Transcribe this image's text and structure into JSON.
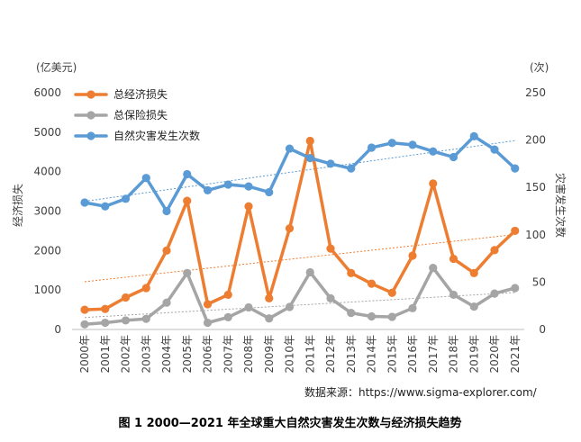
{
  "chart_data": {
    "type": "line",
    "categories": [
      "2000年",
      "2001年",
      "2002年",
      "2003年",
      "2004年",
      "2005年",
      "2006年",
      "2007年",
      "2008年",
      "2009年",
      "2010年",
      "2011年",
      "2012年",
      "2013年",
      "2014年",
      "2015年",
      "2016年",
      "2017年",
      "2018年",
      "2019年",
      "2020年",
      "2021年"
    ],
    "series": [
      {
        "name": "总经济损失",
        "axis": "left",
        "color": "#ED7D31",
        "values": [
          500,
          520,
          810,
          1050,
          2000,
          3260,
          640,
          880,
          3120,
          790,
          2560,
          4780,
          2050,
          1430,
          1160,
          930,
          1870,
          3700,
          1790,
          1430,
          2010,
          2500
        ]
      },
      {
        "name": "总保险损失",
        "axis": "left",
        "color": "#A5A5A5",
        "values": [
          130,
          170,
          230,
          270,
          680,
          1430,
          170,
          310,
          560,
          280,
          570,
          1450,
          790,
          420,
          330,
          320,
          540,
          1560,
          880,
          580,
          910,
          1050
        ]
      },
      {
        "name": "自然灾害发生次数",
        "axis": "right",
        "color": "#5B9BD5",
        "values": [
          134,
          130,
          138,
          160,
          125,
          164,
          147,
          153,
          151,
          145,
          191,
          181,
          175,
          170,
          192,
          197,
          195,
          188,
          182,
          204,
          190,
          170
        ]
      }
    ],
    "y_left": {
      "label": "经济损失",
      "unit": "(亿美元)",
      "ylim": [
        0,
        6000
      ],
      "ticks": [
        0,
        1000,
        2000,
        3000,
        4000,
        5000,
        6000
      ]
    },
    "y_right": {
      "label": "灾害发生次数",
      "unit": "(次)",
      "ylim": [
        0,
        250
      ],
      "ticks": [
        0,
        50,
        100,
        150,
        200,
        250
      ]
    },
    "trendlines": "dotted linear trend line per series",
    "legend_position": "top-left",
    "grid": false,
    "source": "数据来源：https://www.sigma-explorer.com/",
    "caption": "图 1 2000—2021 年全球重大自然灾害发生次数与经济损失趋势"
  }
}
